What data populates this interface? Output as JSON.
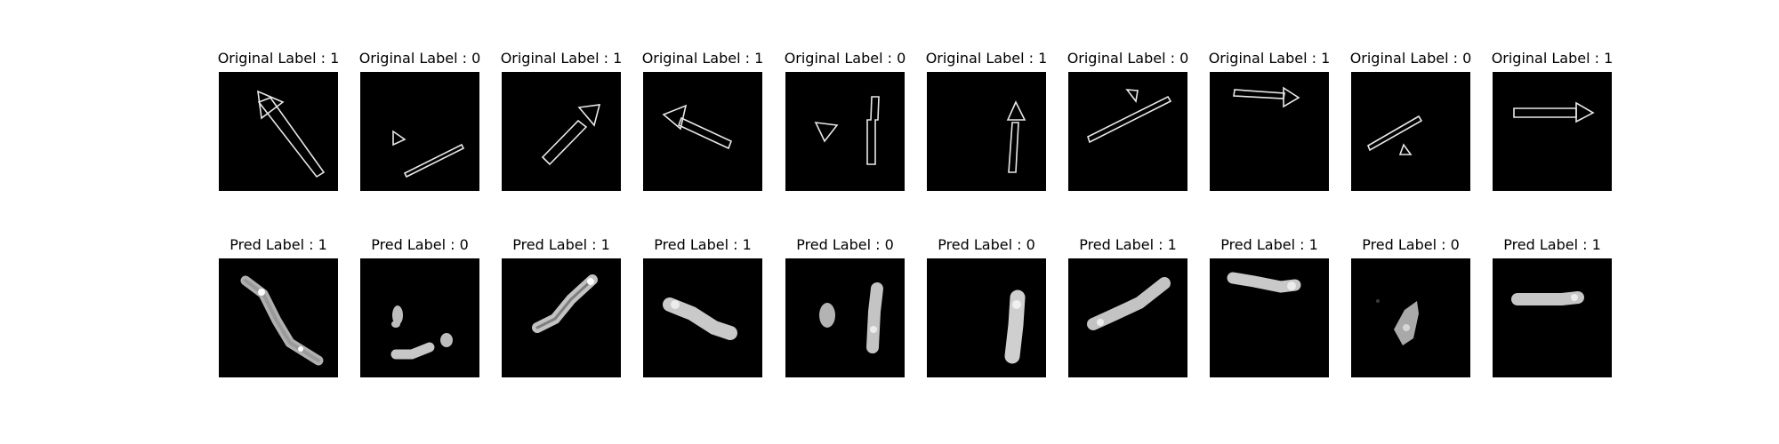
{
  "figure": {
    "original_panels": [
      {
        "title": "Original Label : 1"
      },
      {
        "title": "Original Label : 0"
      },
      {
        "title": "Original Label : 1"
      },
      {
        "title": "Original Label : 1"
      },
      {
        "title": "Original Label : 0"
      },
      {
        "title": "Original Label : 1"
      },
      {
        "title": "Original Label : 0"
      },
      {
        "title": "Original Label : 1"
      },
      {
        "title": "Original Label : 0"
      },
      {
        "title": "Original Label : 1"
      }
    ],
    "predicted_panels": [
      {
        "title": "Pred Label : 1"
      },
      {
        "title": "Pred Label : 0"
      },
      {
        "title": "Pred Label : 1"
      },
      {
        "title": "Pred Label : 1"
      },
      {
        "title": "Pred Label : 0"
      },
      {
        "title": "Pred Label : 0"
      },
      {
        "title": "Pred Label : 1"
      },
      {
        "title": "Pred Label : 1"
      },
      {
        "title": "Pred Label : 0"
      },
      {
        "title": "Pred Label : 1"
      }
    ]
  },
  "colors": {
    "panel_bg": "#000000",
    "outline": "#e8e8e8",
    "blob": "#bdbdbd"
  }
}
